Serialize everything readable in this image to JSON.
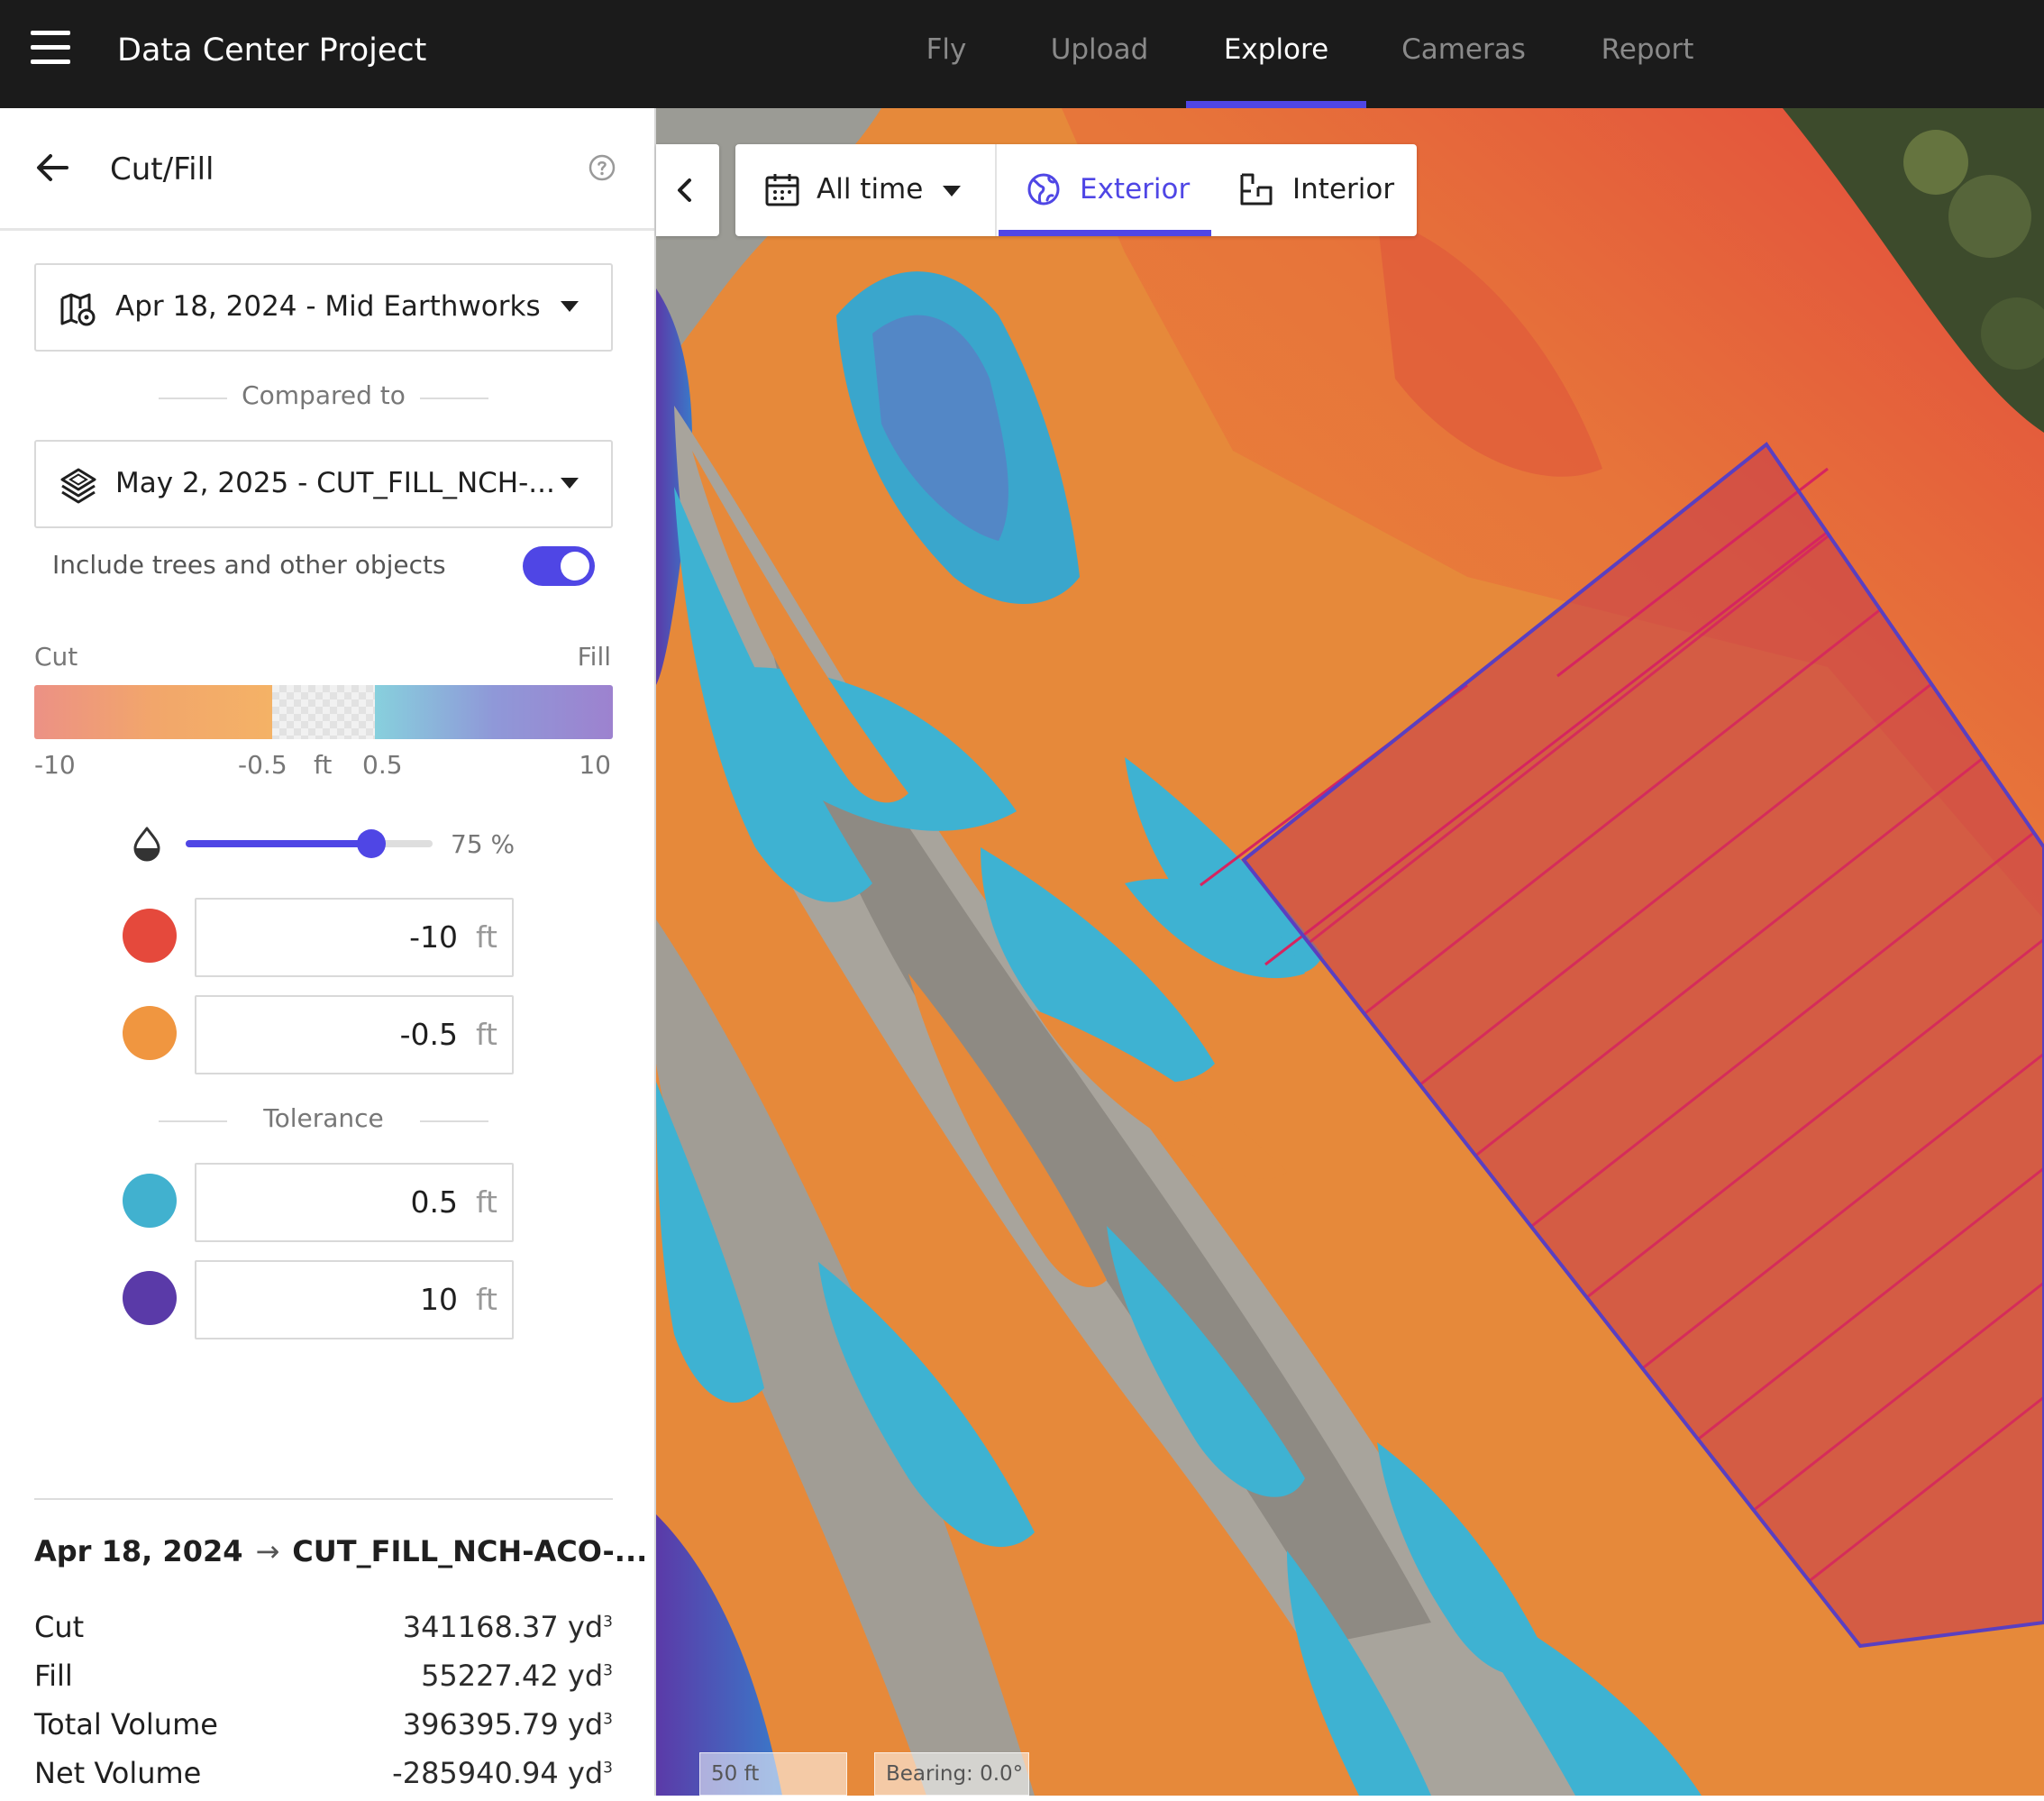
{
  "app": {
    "title": "Data Center Project"
  },
  "nav": {
    "tabs": [
      "Fly",
      "Upload",
      "Explore",
      "Cameras",
      "Report"
    ],
    "active": "Explore"
  },
  "panel": {
    "title": "Cut/Fill",
    "base_survey": "Apr 18, 2024 - Mid Earthworks",
    "compared_to_label": "Compared to",
    "compare_survey": "May 2, 2025 - CUT_FILL_NCH-...",
    "include_objects_label": "Include trees and other objects",
    "include_objects_on": true,
    "scale": {
      "cut_label": "Cut",
      "fill_label": "Fill",
      "min": "-10",
      "cut_tol": "-0.5",
      "unit": "ft",
      "fill_tol": "0.5",
      "max": "10"
    },
    "opacity": {
      "value": 75,
      "label": "75 %"
    },
    "thresholds": [
      {
        "color": "#e5493c",
        "value": "-10",
        "unit": "ft"
      },
      {
        "color": "#f09640",
        "value": "-0.5",
        "unit": "ft"
      },
      {
        "color": "#41b1cf",
        "value": "0.5",
        "unit": "ft"
      },
      {
        "color": "#5a3aa8",
        "value": "10",
        "unit": "ft"
      }
    ],
    "tolerance_label": "Tolerance",
    "stats": {
      "from": "Apr 18, 2024",
      "to": "CUT_FILL_NCH-ACO-...",
      "rows": [
        {
          "label": "Cut",
          "value": "341168.37",
          "unit": "yd",
          "exp": "3"
        },
        {
          "label": "Fill",
          "value": "55227.42",
          "unit": "yd",
          "exp": "3"
        },
        {
          "label": "Total Volume",
          "value": "396395.79",
          "unit": "yd",
          "exp": "3"
        },
        {
          "label": "Net Volume",
          "value": "-285940.94",
          "unit": "yd",
          "exp": "3"
        }
      ]
    }
  },
  "map": {
    "time_filter": "All time",
    "views": [
      "Exterior",
      "Interior"
    ],
    "active_view": "Exterior",
    "scale_label": "50 ft",
    "bearing_label": "Bearing: 0.0°",
    "colors": {
      "accent": "#4f46e5",
      "cut_orange": "#e68a3a",
      "fill_blue": "#3fb4d2",
      "boundary": "#5a3fc0",
      "hatch": "#d6245f"
    }
  }
}
